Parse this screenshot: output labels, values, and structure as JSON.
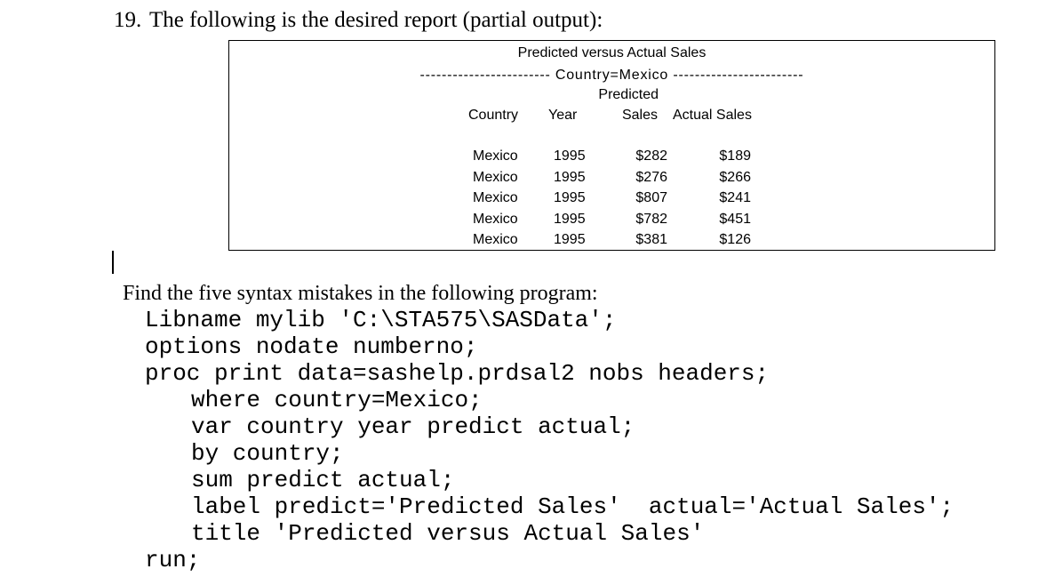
{
  "page": {
    "question_number": "19.",
    "question_text": "The following is the desired report (partial output):",
    "find_text": "Find the five syntax mistakes in the following program:"
  },
  "report": {
    "title": "Predicted versus Actual Sales",
    "by_line": "------------------------ Country=Mexico ------------------------",
    "column_overhead": "Predicted",
    "headers": {
      "country": "Country",
      "year": "Year",
      "sales": "Sales",
      "actual": "Actual Sales"
    },
    "rows": [
      {
        "country": "Mexico",
        "year": "1995",
        "predicted": "$282",
        "actual": "$189"
      },
      {
        "country": "Mexico",
        "year": "1995",
        "predicted": "$276",
        "actual": "$266"
      },
      {
        "country": "Mexico",
        "year": "1995",
        "predicted": "$807",
        "actual": "$241"
      },
      {
        "country": "Mexico",
        "year": "1995",
        "predicted": "$782",
        "actual": "$451"
      },
      {
        "country": "Mexico",
        "year": "1995",
        "predicted": "$381",
        "actual": "$126"
      }
    ]
  },
  "code": {
    "lines": [
      "Libname mylib 'C:\\STA575\\SASData';",
      "options nodate numberno;",
      "proc print data=sashelp.prdsal2 nobs headers;",
      "where country=Mexico;",
      "var country year predict actual;",
      "by country;",
      "sum predict actual;",
      "label predict='Predicted Sales'  actual='Actual Sales';",
      "title 'Predicted versus Actual Sales'",
      "run;"
    ]
  }
}
